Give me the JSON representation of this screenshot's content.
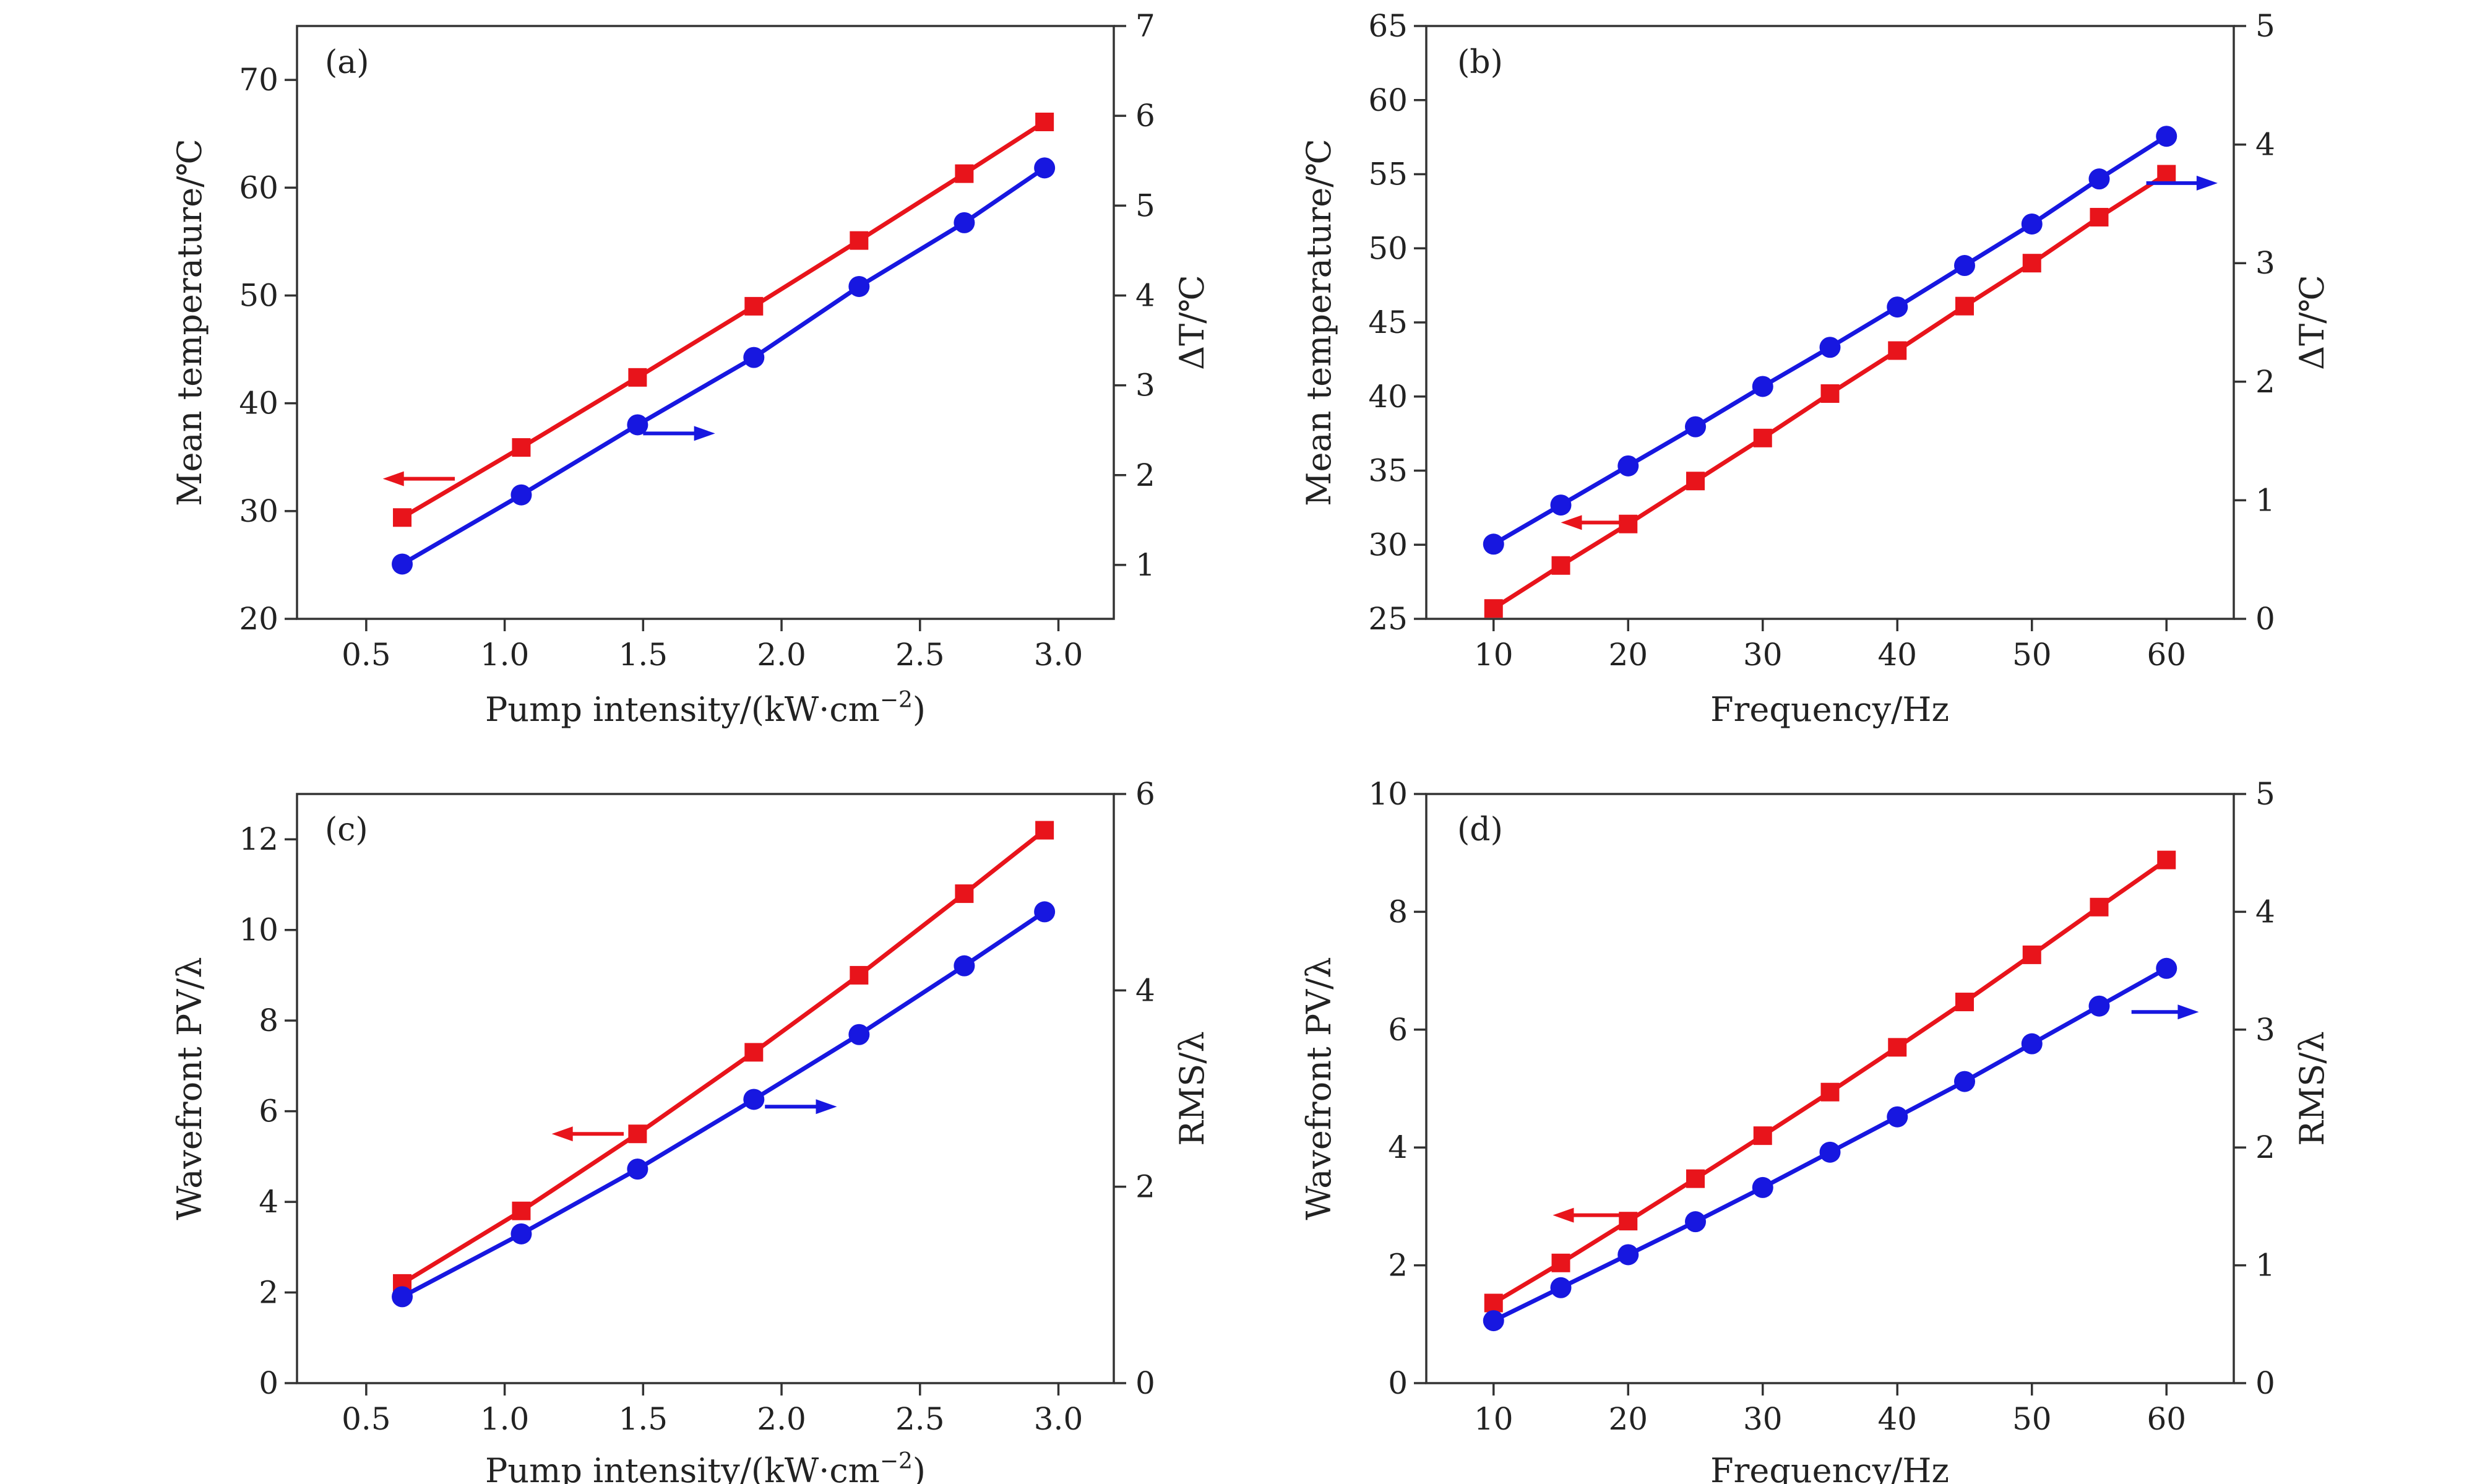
{
  "chart_data": [
    {
      "type": "line",
      "panel_label": "(a)",
      "xlabel": "Pump intensity/(kW·cm",
      "xlabel_sup": "−2",
      "xlabel_end": ")",
      "ylabel_left": "Mean temperature/℃",
      "ylabel_right": "ΔT/℃",
      "xlim": [
        0.25,
        3.2
      ],
      "ylim_left": [
        20,
        75
      ],
      "ylim_right": [
        0.4,
        7
      ],
      "xticks": [
        "0.5",
        "1.0",
        "1.5",
        "2.0",
        "2.5",
        "3.0"
      ],
      "yticks_left": [
        "20",
        "30",
        "40",
        "50",
        "60",
        "70"
      ],
      "yticks_right": [
        "1",
        "2",
        "3",
        "4",
        "5",
        "6",
        "7"
      ],
      "x": [
        0.63,
        1.06,
        1.48,
        1.9,
        2.28,
        2.66,
        2.95
      ],
      "series": [
        {
          "name": "Mean temperature",
          "axis": "left",
          "color": "#e8141b",
          "marker": "square",
          "values": [
            29.4,
            35.9,
            42.4,
            49.0,
            55.1,
            61.3,
            66.1
          ]
        },
        {
          "name": "ΔT",
          "axis": "right",
          "color": "#1717e0",
          "marker": "circle",
          "values": [
            1.01,
            1.78,
            2.56,
            3.31,
            4.1,
            4.81,
            5.42
          ]
        }
      ],
      "arrows": [
        {
          "color": "#e8141b",
          "direction": "left",
          "x_from": 0.82,
          "x_to": 0.56,
          "y": 33.0,
          "axis": "left"
        },
        {
          "color": "#1717e0",
          "direction": "right",
          "x_from": 1.5,
          "x_to": 1.76,
          "y": 37.2,
          "axis": "left"
        }
      ]
    },
    {
      "type": "line",
      "panel_label": "(b)",
      "xlabel": "Frequency/Hz",
      "ylabel_left": "Mean temperature/℃",
      "ylabel_right": "ΔT/℃",
      "xlim": [
        5,
        65
      ],
      "ylim_left": [
        25,
        65
      ],
      "ylim_right": [
        0,
        5
      ],
      "xticks": [
        "10",
        "20",
        "30",
        "40",
        "50",
        "60"
      ],
      "yticks_left": [
        "25",
        "30",
        "35",
        "40",
        "45",
        "50",
        "55",
        "60",
        "65"
      ],
      "yticks_right": [
        "0",
        "1",
        "2",
        "3",
        "4",
        "5"
      ],
      "x": [
        10,
        15,
        20,
        25,
        30,
        35,
        40,
        45,
        50,
        55,
        60
      ],
      "series": [
        {
          "name": "Mean temperature",
          "axis": "left",
          "color": "#e8141b",
          "marker": "square",
          "values": [
            25.7,
            28.6,
            31.4,
            34.3,
            37.2,
            40.2,
            43.1,
            46.1,
            49.0,
            52.1,
            55.0
          ]
        },
        {
          "name": "ΔT",
          "axis": "right",
          "color": "#1717e0",
          "marker": "circle",
          "values": [
            0.63,
            0.96,
            1.29,
            1.62,
            1.96,
            2.29,
            2.63,
            2.98,
            3.33,
            3.71,
            4.07
          ]
        }
      ],
      "arrows": [
        {
          "color": "#e8141b",
          "direction": "left",
          "x_from": 19.5,
          "x_to": 15.0,
          "y": 31.5,
          "axis": "left"
        },
        {
          "color": "#1717e0",
          "direction": "right",
          "x_from": 58.5,
          "x_to": 63.8,
          "y": 54.4,
          "axis": "left"
        }
      ]
    },
    {
      "type": "line",
      "panel_label": "(c)",
      "xlabel": "Pump intensity/(kW·cm",
      "xlabel_sup": "−2",
      "xlabel_end": ")",
      "ylabel_left": "Wavefront PV/λ",
      "ylabel_right": "RMS/λ",
      "xlim": [
        0.25,
        3.2
      ],
      "ylim_left": [
        0,
        13
      ],
      "ylim_right": [
        0,
        6
      ],
      "xticks": [
        "0.5",
        "1.0",
        "1.5",
        "2.0",
        "2.5",
        "3.0"
      ],
      "yticks_left": [
        "0",
        "2",
        "4",
        "6",
        "8",
        "10",
        "12"
      ],
      "yticks_right": [
        "0",
        "2",
        "4",
        "6"
      ],
      "x": [
        0.63,
        1.06,
        1.48,
        1.9,
        2.28,
        2.66,
        2.95
      ],
      "series": [
        {
          "name": "Wavefront PV",
          "axis": "left",
          "color": "#e8141b",
          "marker": "square",
          "values": [
            2.2,
            3.8,
            5.5,
            7.3,
            9.0,
            10.8,
            12.2
          ]
        },
        {
          "name": "RMS",
          "axis": "right",
          "color": "#1717e0",
          "marker": "circle",
          "values": [
            0.88,
            1.52,
            2.18,
            2.89,
            3.55,
            4.25,
            4.8
          ]
        }
      ],
      "arrows": [
        {
          "color": "#e8141b",
          "direction": "left",
          "x_from": 1.43,
          "x_to": 1.17,
          "y": 5.5,
          "axis": "left"
        },
        {
          "color": "#1717e0",
          "direction": "right",
          "x_from": 1.94,
          "x_to": 2.2,
          "y": 6.1,
          "axis": "left"
        }
      ]
    },
    {
      "type": "line",
      "panel_label": "(d)",
      "xlabel": "Frequency/Hz",
      "ylabel_left": "Wavefront PV/λ",
      "ylabel_right": "RMS/λ",
      "xlim": [
        5,
        65
      ],
      "ylim_left": [
        0,
        10
      ],
      "ylim_right": [
        0,
        5
      ],
      "xticks": [
        "10",
        "20",
        "30",
        "40",
        "50",
        "60"
      ],
      "yticks_left": [
        "0",
        "2",
        "4",
        "6",
        "8",
        "10"
      ],
      "yticks_right": [
        "0",
        "1",
        "2",
        "3",
        "4",
        "5"
      ],
      "x": [
        10,
        15,
        20,
        25,
        30,
        35,
        40,
        45,
        50,
        55,
        60
      ],
      "series": [
        {
          "name": "Wavefront PV",
          "axis": "left",
          "color": "#e8141b",
          "marker": "square",
          "values": [
            1.36,
            2.04,
            2.75,
            3.47,
            4.2,
            4.94,
            5.7,
            6.47,
            7.27,
            8.08,
            8.88
          ]
        },
        {
          "name": "RMS",
          "axis": "right",
          "color": "#1717e0",
          "marker": "circle",
          "values": [
            0.53,
            0.81,
            1.09,
            1.37,
            1.66,
            1.96,
            2.26,
            2.56,
            2.88,
            3.2,
            3.52
          ]
        }
      ],
      "arrows": [
        {
          "color": "#e8141b",
          "direction": "left",
          "x_from": 19.8,
          "x_to": 14.4,
          "y": 2.85,
          "axis": "left"
        },
        {
          "color": "#1717e0",
          "direction": "right",
          "x_from": 57.4,
          "x_to": 62.4,
          "y": 6.3,
          "axis": "left"
        }
      ]
    }
  ]
}
